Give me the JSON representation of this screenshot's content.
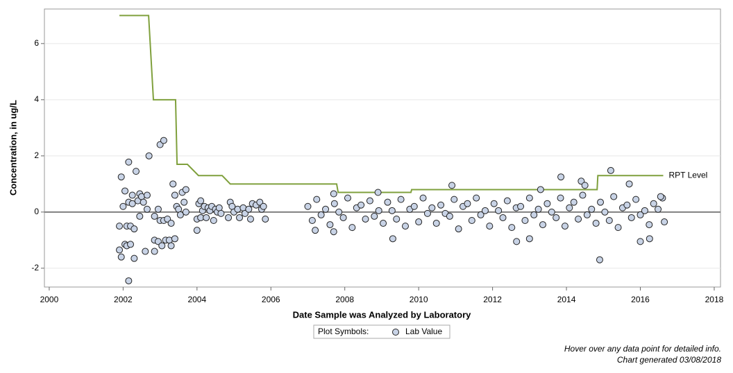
{
  "chart_data": {
    "type": "scatter",
    "x_label": "Date Sample was Analyzed by Laboratory",
    "y_label": "Concentration, in ug/L",
    "legend_title": "Plot Symbols:",
    "notes": [
      "Hover over any data point for detailed info.",
      "Chart generated 03/08/2018"
    ],
    "xlim": [
      1999.87,
      2018.17
    ],
    "ylim": [
      -2.67,
      7.23
    ],
    "xticks": [
      2000,
      2002,
      2004,
      2006,
      2008,
      2010,
      2012,
      2014,
      2016,
      2018
    ],
    "yticks": [
      -2,
      0,
      2,
      4,
      6
    ],
    "grid": true,
    "zero_line": true,
    "series": [
      {
        "name": "Lab Value",
        "mark": "marker",
        "color": "#c8d3e6",
        "x": [
          2001.9,
          2001.95,
          2001.9,
          2001.95,
          2002.0,
          2002.05,
          2002.05,
          2002.1,
          2002.1,
          2002.15,
          2002.15,
          2002.2,
          2002.2,
          2002.15,
          2002.25,
          2002.25,
          2002.3,
          2002.3,
          2002.35,
          2002.4,
          2002.45,
          2002.45,
          2002.5,
          2002.55,
          2002.6,
          2002.65,
          2002.65,
          2002.7,
          2002.85,
          2002.85,
          2002.85,
          2002.95,
          2003.0,
          2002.95,
          2003.0,
          2003.05,
          2003.1,
          2003.1,
          2003.15,
          2003.2,
          2003.25,
          2003.3,
          2003.3,
          2003.35,
          2003.4,
          2003.4,
          2003.45,
          2003.5,
          2003.55,
          2003.6,
          2003.65,
          2003.7,
          2003.7,
          2004.0,
          2004.0,
          2004.05,
          2004.1,
          2004.1,
          2004.15,
          2004.2,
          2004.25,
          2004.3,
          2004.35,
          2004.4,
          2004.45,
          2004.5,
          2004.55,
          2004.6,
          2004.65,
          2004.85,
          2004.9,
          2004.95,
          2005.0,
          2005.1,
          2005.15,
          2005.25,
          2005.3,
          2005.4,
          2005.45,
          2005.5,
          2005.6,
          2005.7,
          2005.75,
          2005.8,
          2005.85,
          2007.0,
          2007.12,
          2007.24,
          2007.36,
          2007.48,
          2007.6,
          2007.72,
          2007.84,
          2007.96,
          2008.08,
          2008.2,
          2008.32,
          2008.44,
          2008.56,
          2008.68,
          2008.8,
          2008.92,
          2009.04,
          2009.16,
          2009.28,
          2009.4,
          2009.52,
          2009.64,
          2009.76,
          2009.88,
          2010.0,
          2010.12,
          2010.24,
          2010.36,
          2010.48,
          2010.6,
          2010.72,
          2010.84,
          2010.96,
          2011.08,
          2011.2,
          2011.32,
          2011.44,
          2011.56,
          2011.68,
          2011.8,
          2011.92,
          2012.04,
          2012.16,
          2012.28,
          2012.4,
          2012.52,
          2012.64,
          2012.76,
          2012.88,
          2013.0,
          2013.12,
          2013.24,
          2013.36,
          2013.48,
          2013.6,
          2013.72,
          2013.84,
          2013.96,
          2014.08,
          2014.2,
          2014.32,
          2014.44,
          2014.56,
          2014.68,
          2014.8,
          2014.92,
          2015.04,
          2015.16,
          2015.28,
          2015.4,
          2015.52,
          2015.64,
          2015.76,
          2015.88,
          2016.0,
          2016.12,
          2016.24,
          2016.36,
          2016.48,
          2016.6,
          2007.2,
          2007.7,
          2007.7,
          2008.9,
          2009.3,
          2010.9,
          2012.65,
          2013.0,
          2013.3,
          2013.85,
          2014.4,
          2014.5,
          2014.9,
          2015.2,
          2015.7,
          2016.0,
          2016.25,
          2016.55,
          2016.65
        ],
        "values": [
          -0.5,
          1.25,
          -1.35,
          -1.6,
          0.2,
          0.75,
          -1.15,
          -1.2,
          -0.5,
          1.78,
          0.35,
          -0.5,
          -1.15,
          -2.45,
          0.6,
          0.3,
          -0.6,
          -1.65,
          1.45,
          0.4,
          -0.15,
          0.65,
          0.55,
          0.35,
          -1.4,
          0.6,
          0.1,
          2.0,
          -1.0,
          -1.4,
          -0.15,
          -1.05,
          2.4,
          0.1,
          -0.3,
          -1.2,
          2.55,
          -0.3,
          -1.0,
          -0.25,
          -1.0,
          -0.4,
          -1.2,
          1.0,
          0.6,
          -0.95,
          0.2,
          0.1,
          -0.1,
          0.7,
          0.35,
          0.8,
          0.0,
          -0.25,
          -0.65,
          0.3,
          0.4,
          -0.2,
          0.05,
          0.2,
          -0.2,
          0.15,
          0.05,
          0.2,
          -0.3,
          0.1,
          0.0,
          0.15,
          -0.05,
          -0.2,
          0.35,
          0.2,
          0.0,
          0.1,
          -0.2,
          0.15,
          -0.05,
          0.1,
          -0.25,
          0.3,
          0.25,
          0.35,
          0.1,
          0.2,
          -0.25,
          0.2,
          -0.3,
          0.45,
          -0.1,
          0.1,
          -0.45,
          0.3,
          0.0,
          -0.2,
          0.5,
          -0.55,
          0.15,
          0.25,
          -0.25,
          0.4,
          -0.15,
          0.05,
          -0.4,
          0.35,
          0.05,
          -0.25,
          0.45,
          -0.5,
          0.1,
          0.2,
          -0.35,
          0.5,
          -0.05,
          0.15,
          -0.4,
          0.25,
          -0.05,
          -0.15,
          0.45,
          -0.6,
          0.2,
          0.3,
          -0.3,
          0.5,
          -0.1,
          0.05,
          -0.5,
          0.3,
          0.05,
          -0.2,
          0.4,
          -0.55,
          0.15,
          0.2,
          -0.3,
          0.5,
          -0.1,
          0.1,
          -0.45,
          0.3,
          0.0,
          -0.2,
          0.5,
          -0.5,
          0.15,
          0.35,
          -0.25,
          0.6,
          -0.1,
          0.1,
          -0.4,
          0.35,
          0.0,
          -0.3,
          0.55,
          -0.55,
          0.15,
          0.25,
          -0.2,
          0.45,
          -0.1,
          0.05,
          -0.45,
          0.3,
          0.1,
          0.5,
          -0.65,
          -0.7,
          0.65,
          0.7,
          -0.95,
          0.95,
          -1.05,
          -0.95,
          0.8,
          1.25,
          1.1,
          0.95,
          -1.7,
          1.48,
          1.0,
          -1.05,
          -0.95,
          0.55,
          -0.35
        ]
      },
      {
        "name": "RPT Level",
        "mark": "line",
        "color": "#7fa03c",
        "x": [
          2001.9,
          2002.69,
          2002.82,
          2003.42,
          2003.46,
          2003.74,
          2004.04,
          2004.68,
          2004.9,
          2007.78,
          2007.82,
          2009.79,
          2009.81,
          2014.83,
          2014.85,
          2016.62
        ],
        "values": [
          7,
          7,
          4,
          4,
          1.7,
          1.7,
          1.3,
          1.3,
          1.0,
          1.0,
          0.7,
          0.7,
          0.8,
          0.8,
          1.3,
          1.3
        ]
      }
    ]
  }
}
